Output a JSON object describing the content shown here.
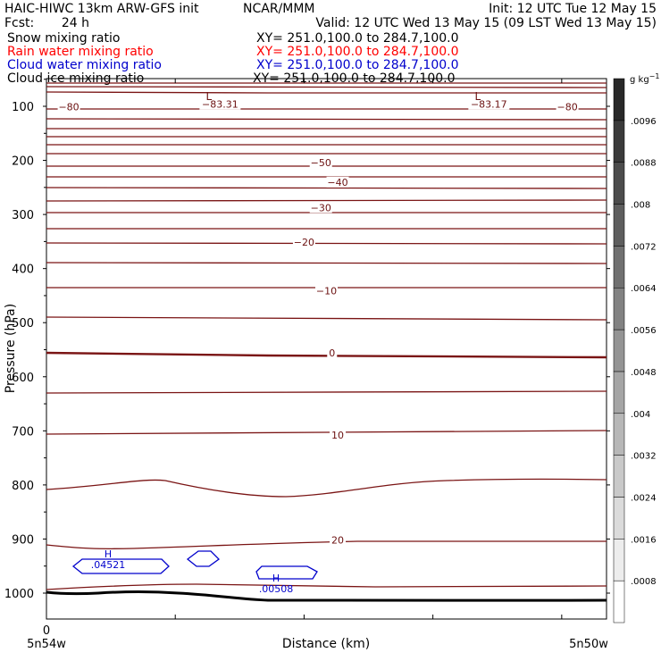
{
  "header": {
    "title_left": "HAIC-HIWC 13km ARW-GFS init",
    "center": "NCAR/MMM",
    "init": "Init: 12 UTC Tue 12 May 15",
    "fcst_label": "Fcst:",
    "fcst_value": "24 h",
    "valid": "Valid: 12 UTC Wed 13 May 15 (09 LST Wed 13 May 15)"
  },
  "fields": [
    {
      "name": "Snow mixing ratio",
      "xs": "XY= 251.0,100.0 to 284.7,100.0",
      "color": "#000000"
    },
    {
      "name": "Rain water mixing ratio",
      "xs": "XY= 251.0,100.0 to 284.7,100.0",
      "color": "#ff0000"
    },
    {
      "name": "Cloud water mixing ratio",
      "xs": "XY= 251.0,100.0 to 284.7,100.0",
      "color": "#0000cc"
    },
    {
      "name": "Cloud ice mixing ratio",
      "xs": "XY= 251.0,100.0 to 284.7,100.0",
      "color": "#000000"
    }
  ],
  "chart_data": {
    "type": "cross-section contour",
    "ylabel": "Pressure (hPa)",
    "xlabel": "Distance (km)",
    "x_start_tick": "0",
    "x_left_label": "5n54w",
    "x_right_label": "5n50w",
    "ylim": [
      1050,
      50
    ],
    "y_ticks": [
      100,
      200,
      300,
      400,
      500,
      600,
      700,
      800,
      900,
      1000
    ],
    "colorbar": {
      "unit_label": "g kg",
      "unit_exp": "−1",
      "ticks": [
        ".0008",
        ".0016",
        ".0024",
        ".0032",
        ".004",
        ".0048",
        ".0056",
        ".0064",
        ".0072",
        ".008",
        ".0088",
        ".0096"
      ]
    },
    "temperature_contour_labels": [
      {
        "text": "−80",
        "p": 106,
        "x": 0.04
      },
      {
        "text": "−83.31",
        "p": 101,
        "x": 0.31
      },
      {
        "text": "−83.17",
        "p": 101,
        "x": 0.79
      },
      {
        "text": "−80",
        "p": 106,
        "x": 0.93
      },
      {
        "text": "−50",
        "p": 209,
        "x": 0.49
      },
      {
        "text": "−40",
        "p": 245,
        "x": 0.52
      },
      {
        "text": "−30",
        "p": 292,
        "x": 0.49
      },
      {
        "text": "−20",
        "p": 356,
        "x": 0.46
      },
      {
        "text": "−10",
        "p": 446,
        "x": 0.5
      },
      {
        "text": "0",
        "p": 561,
        "x": 0.51
      },
      {
        "text": "10",
        "p": 713,
        "x": 0.52
      },
      {
        "text": "20",
        "p": 907,
        "x": 0.52
      }
    ],
    "low_markers": [
      {
        "text": "L",
        "p": 82,
        "x": 0.29
      },
      {
        "text": "L",
        "p": 82,
        "x": 0.77
      }
    ],
    "cloud_water_highs": [
      {
        "text": "H",
        "value": ".04521",
        "p": 937,
        "x": 0.11
      },
      {
        "text": "H",
        "value": ".00508",
        "p": 982,
        "x": 0.41
      }
    ]
  }
}
